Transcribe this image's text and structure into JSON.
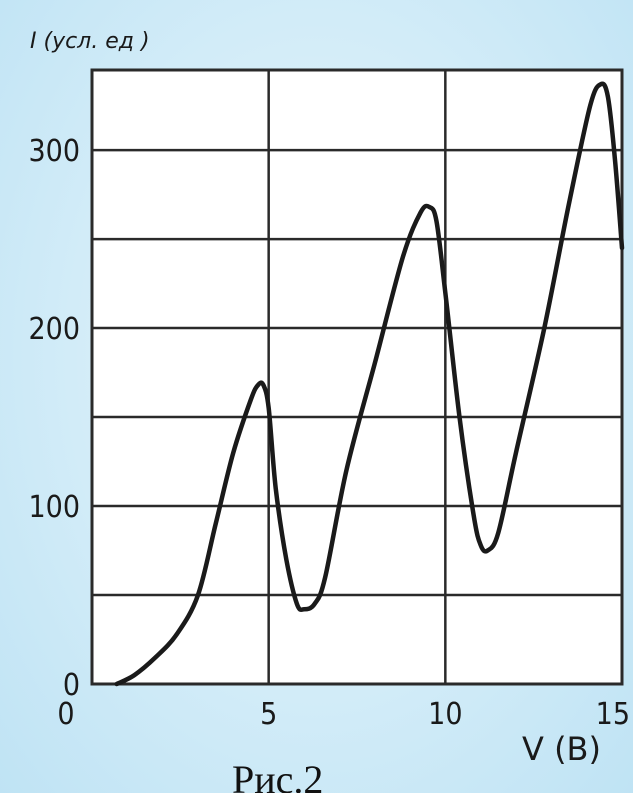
{
  "chart_data": {
    "type": "line",
    "title": "",
    "xlabel": "V (B)",
    "ylabel": "I (усл. ед )",
    "xlim": [
      0,
      15
    ],
    "ylim": [
      0,
      345
    ],
    "x_ticks": [
      "0",
      "5",
      "10",
      "15"
    ],
    "y_ticks": [
      "0",
      "100",
      "200",
      "300"
    ],
    "grid": true,
    "series": [
      {
        "x": [
          0.7,
          1.2,
          1.8,
          2.4,
          3.0,
          3.5,
          4.0,
          4.5,
          4.7,
          4.85,
          5.0,
          5.2,
          5.5,
          5.8,
          6.0,
          6.3,
          6.6,
          7.2,
          8.0,
          8.8,
          9.3,
          9.55,
          9.75,
          10.0,
          10.4,
          10.8,
          11.0,
          11.2,
          11.5,
          12.0,
          12.8,
          13.5,
          14.1,
          14.4,
          14.6,
          14.8,
          15.0
        ],
        "y": [
          0,
          5,
          15,
          28,
          50,
          90,
          130,
          160,
          168,
          168,
          155,
          110,
          70,
          45,
          42,
          45,
          60,
          120,
          180,
          240,
          265,
          268,
          260,
          220,
          150,
          95,
          78,
          75,
          85,
          130,
          200,
          270,
          325,
          337,
          330,
          295,
          245
        ]
      }
    ]
  },
  "caption": "Рис.2",
  "colors": {
    "plot_background": "#ffffff",
    "page_background": "#d2ecf8",
    "curve": "#1a1a1a"
  }
}
